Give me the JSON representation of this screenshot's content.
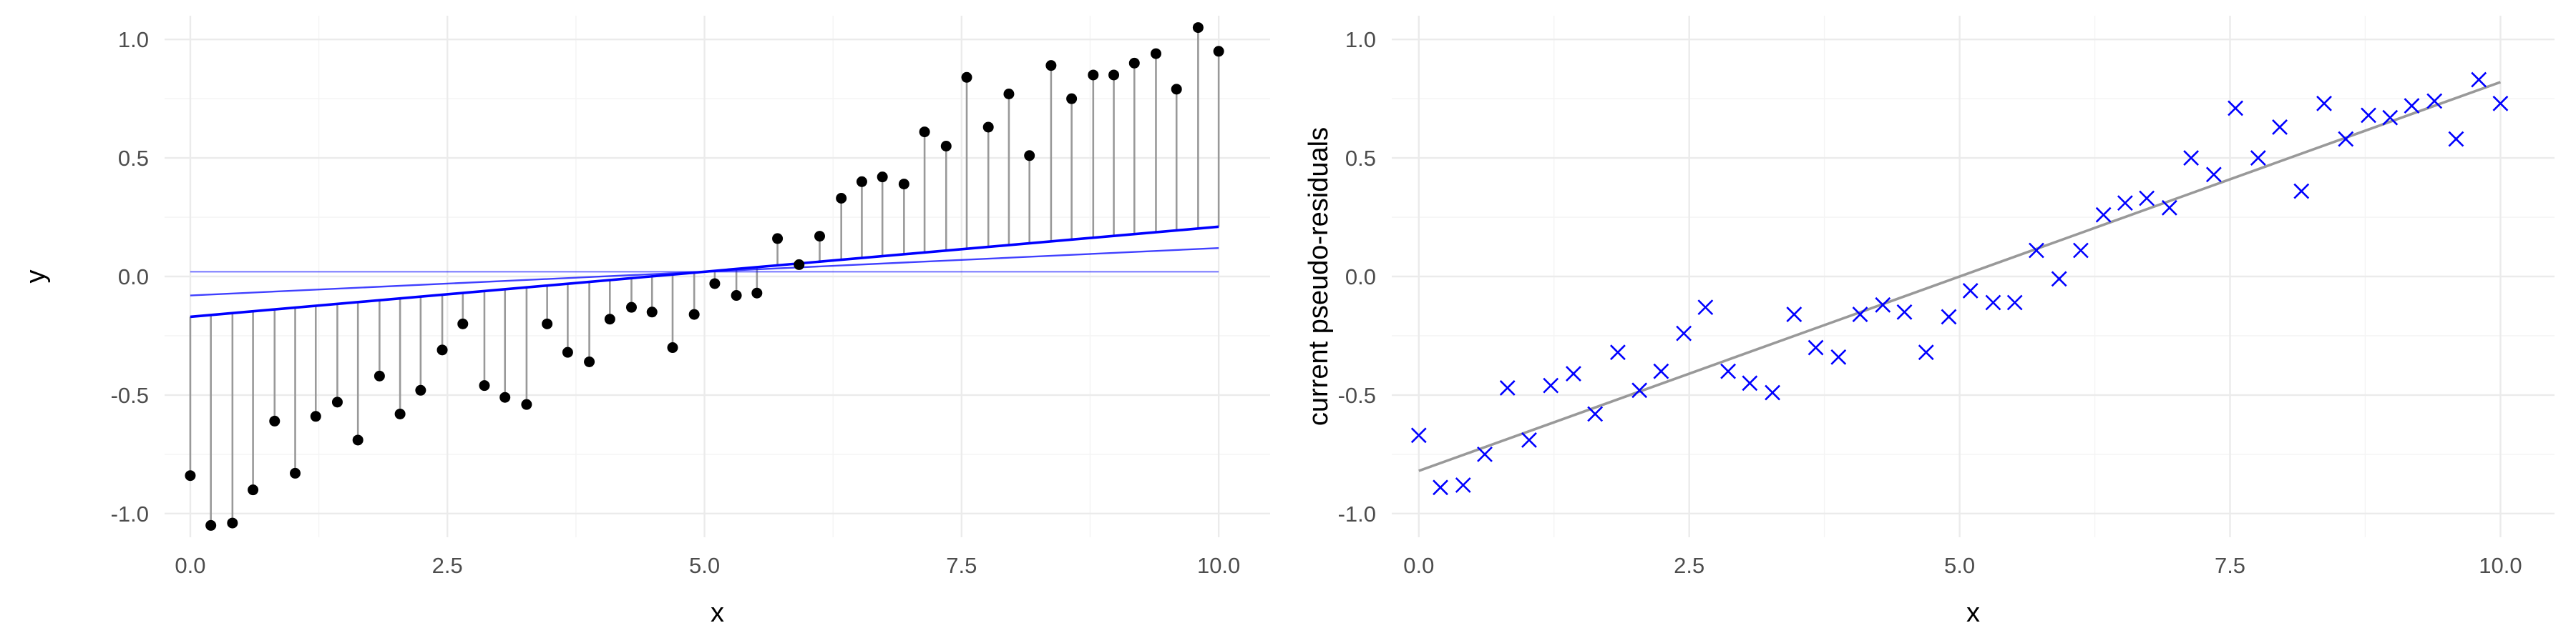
{
  "colors": {
    "points": "#000000",
    "residual_segments": "#999999",
    "fit_lines": "#0000ff",
    "crosses": "#0000ff",
    "trend_line": "#999999"
  },
  "chart_data": [
    {
      "type": "scatter",
      "id": "left",
      "title": "",
      "xlabel": "x",
      "ylabel": "y",
      "xlim": [
        -0.25,
        10.5
      ],
      "ylim": [
        -1.1,
        1.1
      ],
      "x_ticks": [
        0,
        2.5,
        5,
        7.5,
        10
      ],
      "x_tick_labels": [
        "0.0",
        "2.5",
        "5.0",
        "7.5",
        "10.0"
      ],
      "y_ticks": [
        -1,
        -0.5,
        0,
        0.5,
        1
      ],
      "y_tick_labels": [
        "-1.0",
        "-0.5",
        "0.0",
        "0.5",
        "1.0"
      ],
      "grid": true,
      "legend": "none",
      "x": [
        0.0,
        0.2,
        0.41,
        0.61,
        0.82,
        1.02,
        1.22,
        1.43,
        1.63,
        1.84,
        2.04,
        2.24,
        2.45,
        2.65,
        2.86,
        3.06,
        3.27,
        3.47,
        3.67,
        3.88,
        4.08,
        4.29,
        4.49,
        4.69,
        4.9,
        5.1,
        5.31,
        5.51,
        5.71,
        5.92,
        6.12,
        6.33,
        6.53,
        6.73,
        6.94,
        7.14,
        7.35,
        7.55,
        7.76,
        7.96,
        8.16,
        8.37,
        8.57,
        8.78,
        8.98,
        9.18,
        9.39,
        9.59,
        9.8,
        10.0
      ],
      "y": [
        -0.84,
        -1.05,
        -1.04,
        -0.9,
        -0.61,
        -0.83,
        -0.59,
        -0.53,
        -0.69,
        -0.42,
        -0.58,
        -0.48,
        -0.31,
        -0.2,
        -0.46,
        -0.51,
        -0.54,
        -0.2,
        -0.32,
        -0.36,
        -0.18,
        -0.13,
        -0.15,
        -0.3,
        -0.16,
        -0.03,
        -0.08,
        -0.07,
        0.16,
        0.05,
        0.17,
        0.33,
        0.4,
        0.42,
        0.39,
        0.61,
        0.55,
        0.84,
        0.63,
        0.77,
        0.51,
        0.89,
        0.75,
        0.85,
        0.85,
        0.9,
        0.94,
        0.79,
        1.05,
        0.95
      ],
      "segment_base_line": [
        [
          0,
          -0.17
        ],
        [
          10,
          0.21
        ]
      ],
      "lines": [
        [
          [
            0,
            -0.17
          ],
          [
            10,
            0.21
          ]
        ],
        [
          [
            0,
            -0.08
          ],
          [
            10,
            0.12
          ]
        ],
        [
          [
            0,
            0.02
          ],
          [
            10,
            0.02
          ]
        ]
      ]
    },
    {
      "type": "scatter",
      "id": "right",
      "title": "",
      "xlabel": "x",
      "ylabel": "current pseudo-residuals",
      "xlim": [
        -0.25,
        10.5
      ],
      "ylim": [
        -1.1,
        1.1
      ],
      "x_ticks": [
        0,
        2.5,
        5,
        7.5,
        10
      ],
      "x_tick_labels": [
        "0.0",
        "2.5",
        "5.0",
        "7.5",
        "10.0"
      ],
      "y_ticks": [
        -1,
        -0.5,
        0,
        0.5,
        1
      ],
      "y_tick_labels": [
        "-1.0",
        "-0.5",
        "0.0",
        "0.5",
        "1.0"
      ],
      "grid": true,
      "legend": "none",
      "x": [
        0.0,
        0.2,
        0.41,
        0.61,
        0.82,
        1.02,
        1.22,
        1.43,
        1.63,
        1.84,
        2.04,
        2.24,
        2.45,
        2.65,
        2.86,
        3.06,
        3.27,
        3.47,
        3.67,
        3.88,
        4.08,
        4.29,
        4.49,
        4.69,
        4.9,
        5.1,
        5.31,
        5.51,
        5.71,
        5.92,
        6.12,
        6.33,
        6.53,
        6.73,
        6.94,
        7.14,
        7.35,
        7.55,
        7.76,
        7.96,
        8.16,
        8.37,
        8.57,
        8.78,
        8.98,
        9.18,
        9.39,
        9.59,
        9.8,
        10.0
      ],
      "y": [
        -0.67,
        -0.89,
        -0.88,
        -0.75,
        -0.47,
        -0.69,
        -0.46,
        -0.41,
        -0.58,
        -0.32,
        -0.48,
        -0.4,
        -0.24,
        -0.13,
        -0.4,
        -0.45,
        -0.49,
        -0.16,
        -0.3,
        -0.34,
        -0.16,
        -0.12,
        -0.15,
        -0.32,
        -0.17,
        -0.06,
        -0.11,
        -0.11,
        0.11,
        -0.01,
        0.11,
        0.26,
        0.31,
        0.33,
        0.29,
        0.5,
        0.43,
        0.71,
        0.5,
        0.63,
        0.36,
        0.73,
        0.58,
        0.68,
        0.67,
        0.72,
        0.74,
        0.58,
        0.83,
        0.73
      ],
      "trend_line": [
        [
          0,
          -0.82
        ],
        [
          10,
          0.82
        ]
      ]
    }
  ]
}
